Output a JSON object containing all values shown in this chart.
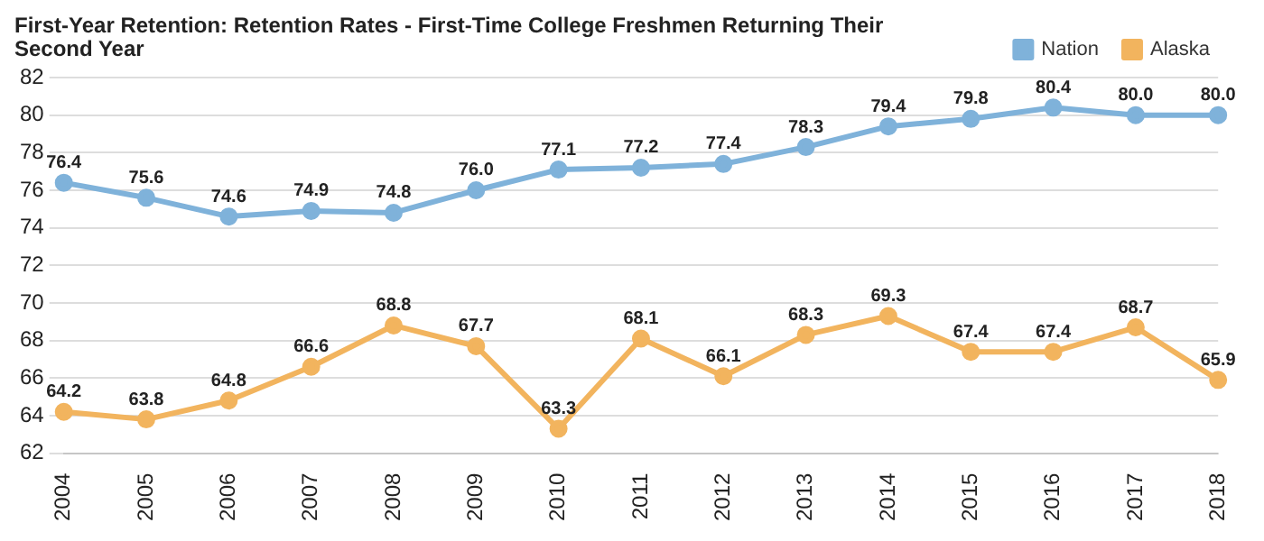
{
  "chart_data": {
    "type": "line",
    "title": "First-Year Retention: Retention Rates - First-Time College Freshmen Returning Their Second Year",
    "categories": [
      "2004",
      "2005",
      "2006",
      "2007",
      "2008",
      "2009",
      "2010",
      "2011",
      "2012",
      "2013",
      "2014",
      "2015",
      "2016",
      "2017",
      "2018"
    ],
    "series": [
      {
        "name": "Nation",
        "color": "#7fb2da",
        "values": [
          76.4,
          75.6,
          74.6,
          74.9,
          74.8,
          76.0,
          77.1,
          77.2,
          77.4,
          78.3,
          79.4,
          79.8,
          80.4,
          80.0,
          80.0
        ],
        "value_labels": [
          "76.4",
          "75.6",
          "74.6",
          "74.9",
          "74.8",
          "76.0",
          "77.1",
          "77.2",
          "77.4",
          "78.3",
          "79.4",
          "79.8",
          "80.4",
          "80.0",
          "80.0"
        ]
      },
      {
        "name": "Alaska",
        "color": "#f2b45e",
        "values": [
          64.2,
          63.8,
          64.8,
          66.6,
          68.8,
          67.7,
          63.3,
          68.1,
          66.1,
          68.3,
          69.3,
          67.4,
          67.4,
          68.7,
          65.9
        ],
        "value_labels": [
          "64.2",
          "63.8",
          "64.8",
          "66.6",
          "68.8",
          "67.7",
          "63.3",
          "68.1",
          "66.1",
          "68.3",
          "69.3",
          "67.4",
          "67.4",
          "68.7",
          "65.9"
        ]
      }
    ],
    "ylim": [
      62,
      82
    ],
    "yticks": [
      62,
      64,
      66,
      68,
      70,
      72,
      74,
      76,
      78,
      80,
      82
    ],
    "grid": "y",
    "legend": "top right",
    "marker": "circle",
    "line_style": "solid"
  }
}
